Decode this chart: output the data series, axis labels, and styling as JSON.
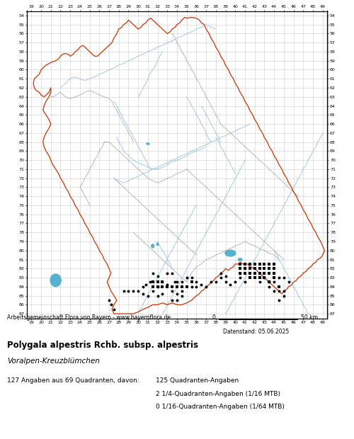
{
  "title": "Polygala alpestris Rchb. subsp. alpestris",
  "subtitle": "Voralpen-Kreuzblümchen",
  "attribution": "Arbeitsgemeinschaft Flora von Bayern - www.bayernflora.de",
  "date_label": "Datenstand: 05.06.2025",
  "stats_line1": "127 Angaben aus 69 Quadranten, davon:",
  "stats_right1": "125 Quadranten-Angaben",
  "stats_right2": "2 1/4-Quadranten-Angaben (1/16 MTB)",
  "stats_right3": "0 1/16-Quadranten-Angaben (1/64 MTB)",
  "bg_color": "#ffffff",
  "grid_color": "#cccccc",
  "x_min": 19,
  "x_max": 49,
  "y_min": 54,
  "y_max": 87,
  "bavaria_border_color": "#cc3300",
  "district_border_color": "#888888",
  "river_color": "#88bbdd",
  "water_fill_color": "#44aacc",
  "dot_color": "#000000",
  "square_color": "#000000",
  "bavaria_border_x": [
    24.5,
    24.8,
    25.2,
    25.5,
    26.0,
    26.3,
    26.5,
    26.8,
    27.0,
    27.2,
    27.4,
    27.5,
    27.3,
    27.2,
    27.0,
    26.8,
    26.7,
    26.6,
    26.5,
    26.4,
    26.5,
    26.6,
    26.8,
    27.0,
    27.2,
    27.1,
    26.9,
    26.7,
    26.5,
    26.3,
    26.2,
    26.0,
    25.8,
    25.6,
    25.5,
    25.3,
    25.2,
    25.0,
    24.8,
    24.6,
    24.4,
    24.2,
    24.0,
    23.8,
    23.5,
    23.3,
    23.0,
    22.8,
    22.5,
    22.3,
    22.0,
    21.8,
    21.5,
    21.3,
    21.0,
    20.8,
    20.7,
    20.5,
    20.3,
    20.2,
    20.0,
    19.8,
    19.6,
    19.5,
    19.4,
    19.3,
    19.2,
    19.3,
    19.4,
    19.5,
    19.6,
    19.7,
    19.8,
    19.9,
    20.0,
    20.2,
    20.3,
    20.4,
    20.5,
    20.6,
    20.8,
    21.0,
    21.2,
    21.3,
    21.4,
    21.5,
    21.6,
    21.5,
    21.4,
    21.3,
    21.2,
    21.0,
    20.9,
    20.8,
    20.7,
    20.6,
    20.5,
    20.4,
    20.5,
    20.6,
    20.8,
    21.0,
    21.2,
    21.4,
    21.5,
    21.7,
    22.0,
    22.2,
    22.4,
    22.5,
    22.6,
    22.8,
    23.0,
    23.2,
    23.3,
    23.5,
    23.6,
    23.8,
    24.0,
    24.2,
    24.4,
    24.5,
    24.6,
    24.7,
    24.8,
    24.9,
    25.0,
    25.2,
    25.4,
    25.5,
    25.6,
    25.5,
    25.4,
    25.3,
    25.2,
    25.0,
    24.9,
    24.8,
    24.7,
    24.6,
    24.5,
    24.4,
    24.3,
    24.2,
    24.3,
    24.4,
    24.5,
    24.6,
    24.7,
    24.8,
    25.0,
    25.2,
    25.3,
    25.5,
    25.6,
    25.8,
    26.0,
    26.2,
    26.3,
    26.5,
    26.7,
    26.8,
    27.0,
    27.2,
    27.4,
    27.5,
    27.6,
    27.8,
    28.0,
    28.2,
    28.5,
    28.8,
    29.0,
    29.2,
    29.5,
    29.8,
    30.0,
    30.3,
    30.5,
    30.8,
    31.0,
    31.2,
    31.5,
    31.8,
    32.0,
    32.3,
    32.5,
    32.8,
    33.0,
    33.3,
    33.5,
    33.8,
    34.0,
    34.2,
    34.5,
    34.8,
    35.0,
    35.2,
    35.5,
    35.8,
    36.0,
    36.2,
    36.5,
    36.8,
    37.0,
    37.2,
    37.3,
    37.2,
    37.0,
    36.8,
    36.5,
    36.3,
    36.0,
    35.8,
    35.5,
    35.3,
    35.0,
    34.8,
    34.7,
    34.8,
    35.0,
    35.2,
    35.5,
    35.8,
    36.0,
    36.2,
    36.5,
    36.8,
    37.0,
    37.3,
    37.5,
    37.8,
    38.0,
    38.3,
    38.5,
    38.8,
    39.0,
    39.3,
    39.5,
    39.8,
    40.0,
    40.2,
    40.5,
    40.8,
    41.0,
    41.3,
    41.5,
    41.8,
    42.0,
    42.3,
    42.5,
    42.8,
    43.0,
    43.3,
    43.5,
    43.8,
    44.0,
    44.2,
    44.3,
    44.4,
    44.5,
    44.7,
    44.8,
    45.0,
    45.2,
    45.5,
    45.8,
    46.0,
    46.3,
    46.5,
    46.8,
    47.0,
    47.2,
    47.5,
    47.8,
    48.0,
    48.3,
    48.5,
    48.8,
    49.0,
    49.1,
    49.2,
    49.1,
    49.0,
    48.8,
    48.5,
    48.3,
    48.0,
    47.8,
    47.5,
    47.3,
    47.0,
    46.8,
    46.5,
    46.3,
    46.0,
    45.8,
    45.5,
    45.3,
    45.0,
    44.8,
    44.5,
    44.3,
    44.0,
    43.8,
    43.5,
    43.3,
    43.0,
    42.8,
    42.5,
    42.3,
    42.0,
    41.8,
    41.5,
    41.3,
    41.0,
    40.8,
    40.5,
    40.3,
    40.0,
    39.8,
    39.5,
    39.3,
    39.0,
    38.8,
    38.5,
    38.3,
    38.0,
    37.8,
    37.5,
    37.3,
    37.0,
    36.8,
    36.5,
    36.3,
    36.0,
    35.8,
    35.5,
    35.3,
    35.0,
    34.8,
    34.5,
    34.3,
    34.0,
    33.8,
    33.5,
    33.3,
    33.0,
    32.8,
    32.5,
    32.3,
    32.0,
    31.8,
    31.5,
    31.3,
    31.0,
    30.8,
    30.5,
    30.3,
    30.0,
    29.8,
    29.5,
    29.3,
    29.0,
    28.8,
    28.5,
    28.3,
    28.0,
    27.8,
    27.5,
    27.3,
    27.0,
    26.8,
    26.5,
    26.3,
    26.0,
    25.8,
    25.5,
    25.2,
    25.0,
    24.8,
    24.5
  ],
  "bavaria_border_y": [
    54.3,
    54.0,
    54.1,
    54.2,
    54.5,
    54.3,
    54.2,
    54.4,
    54.5,
    54.3,
    54.5,
    54.8,
    55.0,
    55.2,
    55.5,
    55.8,
    55.5,
    55.3,
    55.5,
    55.8,
    56.0,
    56.2,
    56.3,
    56.0,
    55.8,
    55.5,
    55.3,
    55.2,
    55.3,
    55.5,
    55.8,
    56.0,
    56.2,
    56.3,
    56.5,
    56.8,
    57.0,
    57.2,
    57.5,
    57.8,
    58.0,
    57.8,
    57.5,
    57.3,
    57.5,
    57.8,
    58.0,
    58.3,
    58.5,
    58.3,
    58.0,
    57.8,
    57.5,
    57.3,
    57.5,
    57.8,
    58.0,
    58.3,
    58.5,
    58.8,
    59.0,
    59.3,
    59.5,
    59.8,
    60.0,
    60.3,
    60.5,
    60.8,
    61.0,
    61.3,
    61.5,
    61.8,
    62.0,
    62.3,
    62.5,
    62.8,
    63.0,
    62.8,
    62.5,
    62.3,
    62.0,
    62.3,
    62.5,
    62.8,
    63.0,
    63.3,
    63.5,
    63.8,
    64.0,
    64.3,
    64.5,
    64.8,
    65.0,
    65.3,
    65.5,
    65.8,
    66.0,
    66.3,
    66.5,
    66.8,
    67.0,
    67.3,
    67.5,
    67.8,
    68.0,
    68.3,
    68.5,
    68.8,
    68.5,
    68.3,
    68.0,
    67.8,
    67.5,
    67.3,
    67.0,
    66.8,
    66.5,
    66.3,
    66.0,
    65.8,
    65.5,
    65.3,
    65.0,
    64.8,
    64.5,
    64.3,
    64.0,
    63.8,
    63.5,
    63.3,
    63.0,
    63.3,
    63.5,
    63.8,
    64.0,
    64.3,
    64.5,
    64.8,
    65.0,
    65.3,
    65.5,
    65.8,
    66.0,
    66.3,
    66.5,
    66.8,
    67.0,
    67.3,
    67.5,
    67.8,
    68.0,
    68.3,
    68.5,
    68.8,
    69.0,
    69.3,
    69.5,
    69.8,
    70.0,
    70.3,
    70.5,
    70.8,
    71.0,
    71.3,
    71.5,
    71.8,
    72.0,
    72.3,
    72.5,
    72.8,
    73.0,
    73.3,
    73.5,
    73.8,
    74.0,
    74.3,
    74.5,
    74.8,
    75.0,
    75.3,
    75.5,
    75.8,
    76.0,
    76.3,
    76.5,
    76.8,
    77.0,
    77.3,
    77.5,
    77.8,
    78.0,
    78.3,
    78.5,
    78.8,
    79.0,
    79.3,
    79.5,
    79.8,
    80.0,
    80.3,
    80.5,
    80.8,
    81.0,
    81.3,
    81.5,
    81.8,
    81.5,
    81.3,
    81.0,
    80.8,
    80.5,
    80.3,
    80.0,
    79.8,
    79.5,
    79.3,
    79.0,
    78.8,
    78.5,
    78.3,
    78.0,
    77.8,
    77.5,
    77.3,
    77.0,
    76.8,
    76.5,
    76.3,
    76.0,
    75.8,
    75.5,
    75.3,
    75.0,
    74.8,
    74.5,
    74.3,
    74.0,
    73.8,
    73.5,
    73.3,
    73.0,
    72.8,
    72.5,
    72.3,
    72.0,
    71.8,
    71.5,
    71.3,
    71.0,
    70.8,
    70.5,
    70.3,
    70.0,
    69.8,
    69.5,
    69.3,
    69.0,
    68.8,
    68.5,
    68.3,
    68.0,
    67.8,
    67.5,
    67.3,
    67.0,
    67.3,
    67.5,
    67.8,
    68.0,
    68.3,
    68.5,
    68.8,
    69.0,
    69.3,
    69.5,
    69.8,
    70.0,
    70.3,
    70.5,
    70.8,
    71.0,
    71.3,
    71.5,
    71.8,
    72.0,
    72.3,
    72.5,
    72.8,
    73.0,
    73.3,
    73.5,
    73.8,
    74.0,
    74.3,
    74.5,
    74.8,
    75.0,
    75.3,
    75.5,
    75.8,
    76.0,
    76.3,
    76.5,
    76.8,
    77.0,
    77.3,
    77.5,
    77.8,
    78.0,
    78.3,
    78.5,
    78.8,
    79.0,
    79.3,
    79.5,
    79.8,
    80.0,
    80.3,
    80.5,
    80.8,
    81.0,
    81.3,
    81.5,
    81.8,
    82.0,
    82.3,
    82.5,
    82.8,
    83.0,
    83.3,
    83.5,
    83.8,
    84.0,
    84.3,
    84.5,
    84.8,
    85.0,
    85.3,
    85.5,
    85.8,
    86.0,
    86.3,
    86.5,
    86.8,
    87.0,
    87.0,
    87.0,
    87.0,
    87.0,
    87.0,
    87.0,
    87.0,
    87.0,
    87.0,
    87.0,
    87.0,
    87.0,
    87.0,
    87.0,
    87.0,
    87.0,
    87.0,
    87.0,
    87.0,
    87.0,
    87.0,
    87.0,
    87.0,
    87.0,
    87.0,
    87.0,
    87.0,
    87.0,
    87.0,
    87.0,
    87.0,
    87.0,
    87.0,
    87.0,
    87.0,
    87.0,
    87.0
  ],
  "dots": [
    [
      27.5,
      86.5
    ],
    [
      27.2,
      86.0
    ],
    [
      27.0,
      85.5
    ],
    [
      28.5,
      84.5
    ],
    [
      29.0,
      84.5
    ],
    [
      29.5,
      84.5
    ],
    [
      30.5,
      84.0
    ],
    [
      30.8,
      83.8
    ],
    [
      31.2,
      83.5
    ],
    [
      31.5,
      84.5
    ],
    [
      32.0,
      85.0
    ],
    [
      32.5,
      84.8
    ],
    [
      32.0,
      84.0
    ],
    [
      32.5,
      83.5
    ],
    [
      33.0,
      83.8
    ],
    [
      33.5,
      84.5
    ],
    [
      34.0,
      84.8
    ],
    [
      34.5,
      84.5
    ],
    [
      33.8,
      83.5
    ],
    [
      34.0,
      83.5
    ],
    [
      34.5,
      83.5
    ],
    [
      33.5,
      85.5
    ],
    [
      34.0,
      85.5
    ],
    [
      34.5,
      85.0
    ],
    [
      35.0,
      83.0
    ],
    [
      35.5,
      83.0
    ],
    [
      36.0,
      83.5
    ],
    [
      38.5,
      83.0
    ],
    [
      39.0,
      83.5
    ],
    [
      39.5,
      83.8
    ],
    [
      40.0,
      83.5
    ],
    [
      40.5,
      83.0
    ],
    [
      41.0,
      83.5
    ],
    [
      31.5,
      82.5
    ],
    [
      32.0,
      82.8
    ],
    [
      33.0,
      82.5
    ],
    [
      33.5,
      82.5
    ],
    [
      38.5,
      82.5
    ],
    [
      39.0,
      82.8
    ],
    [
      30.0,
      84.5
    ],
    [
      30.5,
      84.8
    ],
    [
      31.0,
      85.0
    ],
    [
      35.5,
      84.0
    ],
    [
      36.0,
      84.0
    ],
    [
      36.5,
      83.8
    ],
    [
      37.0,
      84.0
    ],
    [
      37.5,
      83.5
    ],
    [
      38.0,
      83.5
    ],
    [
      42.5,
      83.5
    ],
    [
      43.5,
      84.0
    ],
    [
      44.0,
      84.5
    ],
    [
      44.5,
      84.5
    ],
    [
      45.0,
      84.5
    ],
    [
      45.5,
      83.5
    ],
    [
      43.0,
      83.0
    ],
    [
      43.5,
      83.5
    ],
    [
      44.0,
      83.5
    ],
    [
      44.5,
      83.0
    ],
    [
      45.0,
      83.0
    ],
    [
      40.5,
      82.5
    ],
    [
      41.0,
      82.0
    ],
    [
      44.5,
      85.5
    ],
    [
      45.0,
      85.0
    ]
  ],
  "squares": [
    [
      31.5,
      83.5
    ],
    [
      32.0,
      83.5
    ],
    [
      32.5,
      83.5
    ],
    [
      33.0,
      84.0
    ],
    [
      33.5,
      84.0
    ],
    [
      34.0,
      84.0
    ],
    [
      34.5,
      84.0
    ],
    [
      35.0,
      84.0
    ],
    [
      35.5,
      83.5
    ],
    [
      31.5,
      84.0
    ],
    [
      32.0,
      84.0
    ],
    [
      32.5,
      84.0
    ],
    [
      40.5,
      81.5
    ],
    [
      41.0,
      81.5
    ],
    [
      41.5,
      81.5
    ],
    [
      42.0,
      81.5
    ],
    [
      42.5,
      81.5
    ],
    [
      43.0,
      81.5
    ],
    [
      43.5,
      81.5
    ],
    [
      44.0,
      81.5
    ],
    [
      40.5,
      82.0
    ],
    [
      41.0,
      82.0
    ],
    [
      41.5,
      82.0
    ],
    [
      42.0,
      82.0
    ],
    [
      42.5,
      82.0
    ],
    [
      43.0,
      82.0
    ],
    [
      43.5,
      82.0
    ],
    [
      44.0,
      82.0
    ],
    [
      40.5,
      82.5
    ],
    [
      41.0,
      82.5
    ],
    [
      41.5,
      82.5
    ],
    [
      42.0,
      82.5
    ],
    [
      42.5,
      82.5
    ],
    [
      43.0,
      82.5
    ],
    [
      43.5,
      82.5
    ],
    [
      44.0,
      82.5
    ],
    [
      41.5,
      83.0
    ],
    [
      42.0,
      83.0
    ],
    [
      42.5,
      83.0
    ],
    [
      43.0,
      83.0
    ],
    [
      44.0,
      83.0
    ],
    [
      43.5,
      83.5
    ],
    [
      44.5,
      84.0
    ]
  ]
}
